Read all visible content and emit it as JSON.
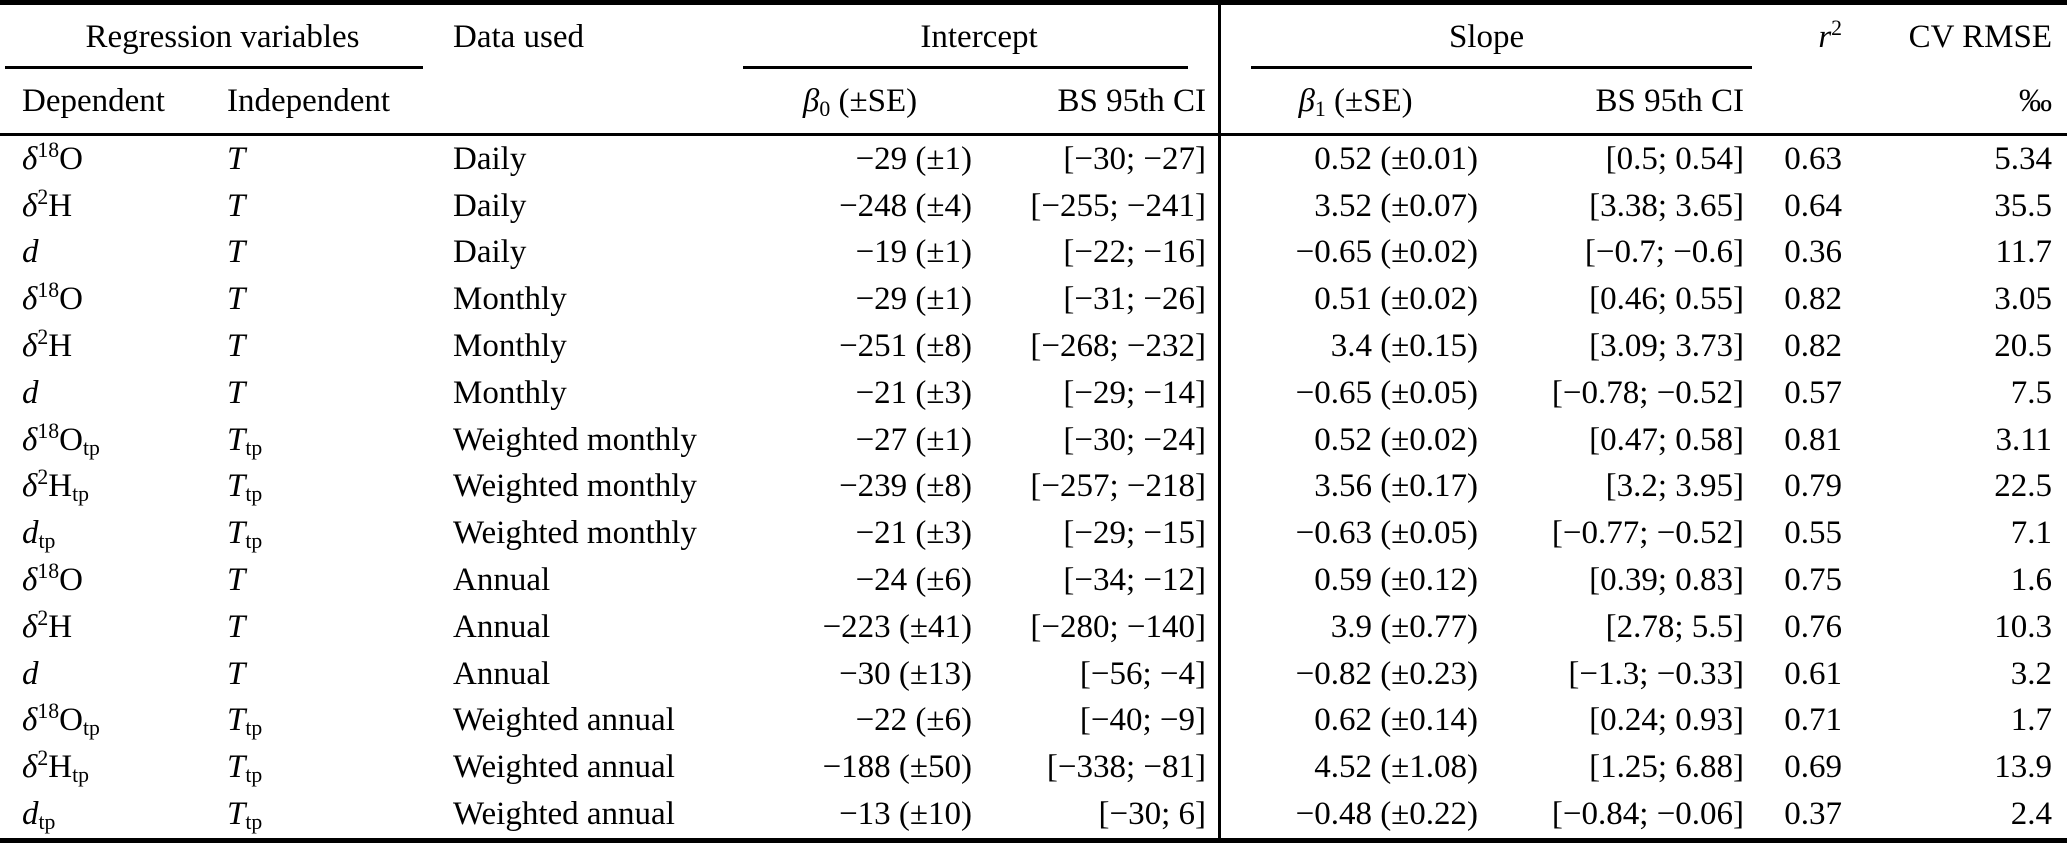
{
  "table": {
    "header": {
      "group_regression": "Regression variables",
      "data_used": "Data used",
      "group_intercept": "Intercept",
      "group_slope": "Slope",
      "r2": "*r*^2^",
      "cv_rmse": "CV RMSE",
      "dependent": "Dependent",
      "independent": "Independent",
      "beta0_se": "*β*~0~ (±SE)",
      "bs_ci_intercept": "BS 95th CI",
      "beta1_se": "*β*~1~ (±SE)",
      "bs_ci_slope": "BS 95th CI",
      "permil": "‰"
    },
    "rows": [
      [
        "*δ*^18^O",
        "*T*",
        "Daily",
        "−29 (±1)",
        "[−30; −27]",
        "0.52 (±0.01)",
        "[0.5; 0.54]",
        "0.63",
        "5.34"
      ],
      [
        "*δ*^2^H",
        "*T*",
        "Daily",
        "−248 (±4)",
        "[−255; −241]",
        "3.52 (±0.07)",
        "[3.38; 3.65]",
        "0.64",
        "35.5"
      ],
      [
        "*d*",
        "*T*",
        "Daily",
        "−19 (±1)",
        "[−22; −16]",
        "−0.65 (±0.02)",
        "[−0.7; −0.6]",
        "0.36",
        "11.7"
      ],
      [
        "*δ*^18^O",
        "*T*",
        "Monthly",
        "−29 (±1)",
        "[−31; −26]",
        "0.51 (±0.02)",
        "[0.46; 0.55]",
        "0.82",
        "3.05"
      ],
      [
        "*δ*^2^H",
        "*T*",
        "Monthly",
        "−251 (±8)",
        "[−268; −232]",
        "3.4 (±0.15)",
        "[3.09; 3.73]",
        "0.82",
        "20.5"
      ],
      [
        "*d*",
        "*T*",
        "Monthly",
        "−21 (±3)",
        "[−29; −14]",
        "−0.65 (±0.05)",
        "[−0.78; −0.52]",
        "0.57",
        "7.5"
      ],
      [
        "*δ*^18^O~tp~",
        "*T*~tp~",
        "Weighted monthly",
        "−27 (±1)",
        "[−30; −24]",
        "0.52 (±0.02)",
        "[0.47; 0.58]",
        "0.81",
        "3.11"
      ],
      [
        "*δ*^2^H~tp~",
        "*T*~tp~",
        "Weighted monthly",
        "−239 (±8)",
        "[−257; −218]",
        "3.56 (±0.17)",
        "[3.2; 3.95]",
        "0.79",
        "22.5"
      ],
      [
        "*d*~tp~",
        "*T*~tp~",
        "Weighted monthly",
        "−21 (±3)",
        "[−29; −15]",
        "−0.63 (±0.05)",
        "[−0.77; −0.52]",
        "0.55",
        "7.1"
      ],
      [
        "*δ*^18^O",
        "*T*",
        "Annual",
        "−24 (±6)",
        "[−34; −12]",
        "0.59 (±0.12)",
        "[0.39; 0.83]",
        "0.75",
        "1.6"
      ],
      [
        "*δ*^2^H",
        "*T*",
        "Annual",
        "−223 (±41)",
        "[−280; −140]",
        "3.9 (±0.77)",
        "[2.78; 5.5]",
        "0.76",
        "10.3"
      ],
      [
        "*d*",
        "*T*",
        "Annual",
        "−30 (±13)",
        "[−56; −4]",
        "−0.82 (±0.23)",
        "[−1.3; −0.33]",
        "0.61",
        "3.2"
      ],
      [
        "*δ*^18^O~tp~",
        "*T*~tp~",
        "Weighted annual",
        "−22 (±6)",
        "[−40; −9]",
        "0.62 (±0.14)",
        "[0.24; 0.93]",
        "0.71",
        "1.7"
      ],
      [
        "*δ*^2^H~tp~",
        "*T*~tp~",
        "Weighted annual",
        "−188 (±50)",
        "[−338; −81]",
        "4.52 (±1.08)",
        "[1.25; 6.88]",
        "0.69",
        "13.9"
      ],
      [
        "*d*~tp~",
        "*T*~tp~",
        "Weighted annual",
        "−13 (±10)",
        "[−30; 6]",
        "−0.48 (±0.22)",
        "[−0.84; −0.06]",
        "0.37",
        "2.4"
      ]
    ]
  }
}
